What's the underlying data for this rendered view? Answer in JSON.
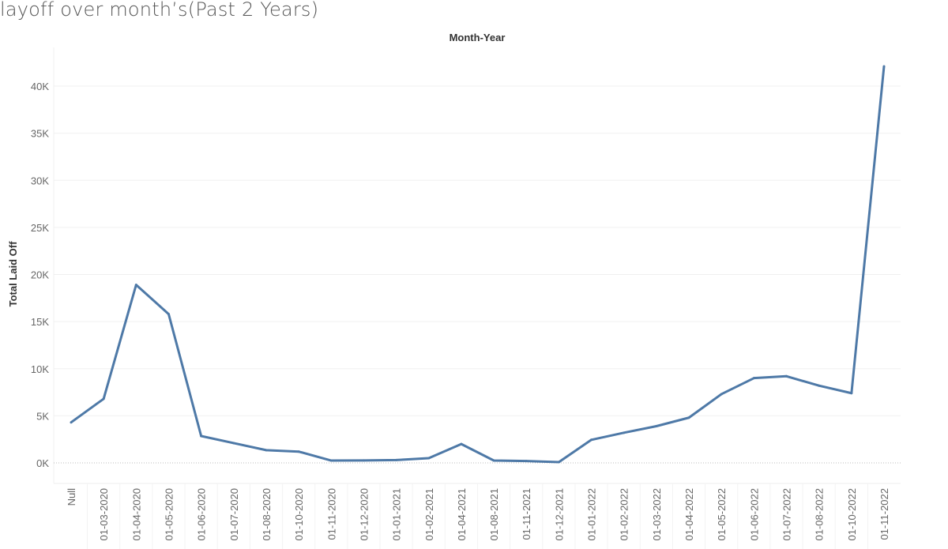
{
  "chart_data": {
    "type": "line",
    "title": "layoff over month’s(Past 2 Years)",
    "xlabel": "Month-Year",
    "ylabel": "Total Laid Off",
    "ylim": [
      0,
      42000
    ],
    "yticks": [
      0,
      5000,
      10000,
      15000,
      20000,
      25000,
      30000,
      35000,
      40000
    ],
    "ytick_labels": [
      "0K",
      "5K",
      "10K",
      "15K",
      "20K",
      "25K",
      "30K",
      "35K",
      "40K"
    ],
    "grid": true,
    "line_color": "#4e79a7",
    "categories": [
      "Null",
      "01-03-2020",
      "01-04-2020",
      "01-05-2020",
      "01-06-2020",
      "01-07-2020",
      "01-08-2020",
      "01-10-2020",
      "01-11-2020",
      "01-12-2020",
      "01-01-2021",
      "01-02-2021",
      "01-04-2021",
      "01-08-2021",
      "01-11-2021",
      "01-12-2021",
      "01-01-2022",
      "01-02-2022",
      "01-03-2022",
      "01-04-2022",
      "01-05-2022",
      "01-06-2022",
      "01-07-2022",
      "01-08-2022",
      "01-10-2022",
      "01-11-2022"
    ],
    "series": [
      {
        "name": "Total Laid Off",
        "values": [
          4300,
          6800,
          18900,
          15800,
          2850,
          2100,
          1350,
          1200,
          250,
          260,
          300,
          500,
          2000,
          250,
          200,
          80,
          2450,
          3200,
          3900,
          4800,
          7300,
          9000,
          9200,
          8200,
          7400,
          42100
        ]
      }
    ]
  }
}
